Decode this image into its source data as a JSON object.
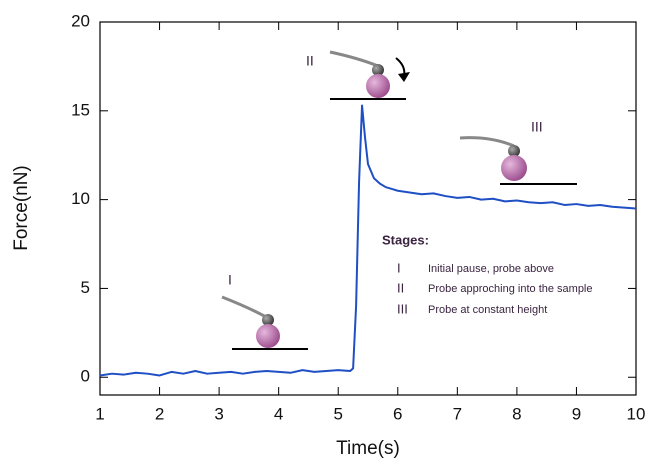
{
  "chart_data": {
    "type": "line",
    "x_label": "Time(s)",
    "y_label": "Force(nN)",
    "x": [
      1.0,
      1.2,
      1.4,
      1.6,
      1.8,
      2.0,
      2.2,
      2.4,
      2.6,
      2.8,
      3.0,
      3.2,
      3.4,
      3.6,
      3.8,
      4.0,
      4.2,
      4.4,
      4.6,
      4.8,
      5.0,
      5.2,
      5.25,
      5.3,
      5.35,
      5.4,
      5.45,
      5.5,
      5.6,
      5.7,
      5.8,
      5.9,
      6.0,
      6.2,
      6.4,
      6.6,
      6.8,
      7.0,
      7.2,
      7.4,
      7.6,
      7.8,
      8.0,
      8.2,
      8.4,
      8.6,
      8.8,
      9.0,
      9.2,
      9.4,
      9.6,
      9.8,
      10.0
    ],
    "series": [
      {
        "color": "#1f4fc4",
        "values": [
          0.1,
          0.2,
          0.15,
          0.25,
          0.2,
          0.1,
          0.3,
          0.2,
          0.35,
          0.2,
          0.25,
          0.3,
          0.2,
          0.3,
          0.35,
          0.3,
          0.25,
          0.4,
          0.3,
          0.35,
          0.4,
          0.35,
          0.5,
          4,
          11,
          15.3,
          13.5,
          12,
          11.2,
          10.9,
          10.7,
          10.6,
          10.5,
          10.4,
          10.3,
          10.35,
          10.2,
          10.1,
          10.15,
          10.0,
          10.05,
          9.9,
          9.95,
          9.85,
          9.8,
          9.85,
          9.7,
          9.75,
          9.65,
          9.7,
          9.6,
          9.55,
          9.5
        ]
      }
    ],
    "xlim": [
      1,
      10
    ],
    "ylim": [
      -1,
      20
    ],
    "xticks": [
      1,
      2,
      3,
      4,
      5,
      6,
      7,
      8,
      9,
      10
    ],
    "yticks": [
      0,
      5,
      10,
      15,
      20
    ],
    "stage_markers": [
      "I",
      "II",
      "III"
    ],
    "legend_title": "Stages:",
    "stages": [
      {
        "numeral": "I",
        "text": "Initial pause, probe above"
      },
      {
        "numeral": "II",
        "text": "Probe approching into the sample"
      },
      {
        "numeral": "III",
        "text": "Probe at constant height"
      }
    ]
  }
}
